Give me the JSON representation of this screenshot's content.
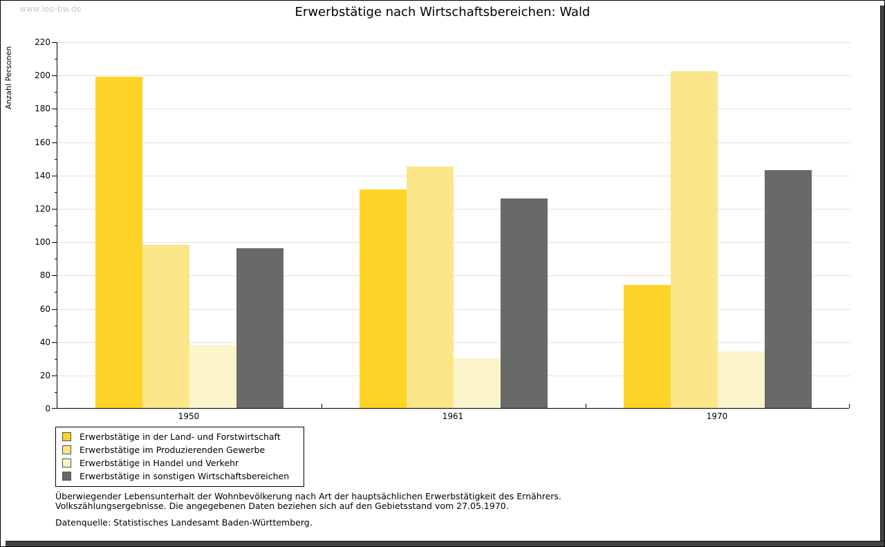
{
  "page": {
    "watermark": "www.leo-bw.de",
    "title": "Erwerbstätige nach Wirtschaftsbereichen: Wald"
  },
  "chart_data": {
    "type": "bar",
    "title": "Erwerbstätige nach Wirtschaftsbereichen: Wald",
    "xlabel": "",
    "ylabel": "Anzahl Personen",
    "categories": [
      "1950",
      "1961",
      "1970"
    ],
    "series": [
      {
        "name": "Erwerbstätige in der Land- und Forstwirtschaft",
        "color": "#FDD328",
        "values": [
          199,
          131,
          74
        ]
      },
      {
        "name": "Erwerbstätige im Produzierenden Gewerbe",
        "color": "#FBE689",
        "values": [
          98,
          145,
          202
        ]
      },
      {
        "name": "Erwerbstätige in Handel und Verkehr",
        "color": "#FCF4CB",
        "values": [
          38,
          30,
          34
        ]
      },
      {
        "name": "Erwerbstätige in sonstigen Wirtschaftsbereichen",
        "color": "#696969",
        "values": [
          96,
          126,
          143
        ]
      }
    ],
    "ylim": [
      0,
      220
    ],
    "ytick_step": 20,
    "minor_tick_step": 10,
    "grid": true,
    "legend_position": "bottom-left",
    "grid_color": "#e2e2e2"
  },
  "footnotes": {
    "line1": "Überwiegender Lebensunterhalt der Wohnbevölkerung nach Art der hauptsächlichen Erwerbstätigkeit des Ernährers.",
    "line2": "Volkszählungsergebnisse. Die angegebenen Daten beziehen sich auf den Gebietsstand vom 27.05.1970.",
    "source": "Datenquelle: Statistisches Landesamt Baden-Württemberg."
  }
}
